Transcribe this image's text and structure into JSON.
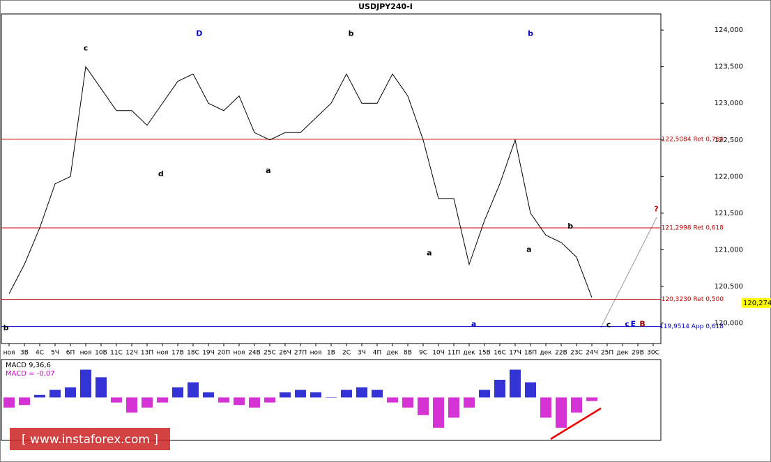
{
  "chart_data": [
    {
      "type": "line",
      "title": "USDJPY240-I",
      "color": "#000000",
      "categories": [
        "ноя",
        "3В",
        "4С",
        "5Ч",
        "6П",
        "ноя",
        "10В",
        "11С",
        "12Ч",
        "13П",
        "ноя",
        "17В",
        "18С",
        "19Ч",
        "20П",
        "ноя",
        "24В",
        "25С",
        "26Ч",
        "27П",
        "ноя",
        "1В",
        "2С",
        "3Ч",
        "4П",
        "дек",
        "8В",
        "9С",
        "10Ч",
        "11П",
        "дек",
        "15В",
        "16С",
        "17Ч",
        "18П",
        "дек",
        "22В",
        "23С",
        "24Ч",
        "25П",
        "дек",
        "29В",
        "30С"
      ],
      "values": [
        120.4,
        120.8,
        121.3,
        121.9,
        122.0,
        123.5,
        123.2,
        122.9,
        122.9,
        122.7,
        123.0,
        123.3,
        123.4,
        123.0,
        122.9,
        123.1,
        122.6,
        122.5,
        122.6,
        122.6,
        122.8,
        123.0,
        123.4,
        123.0,
        123.0,
        123.4,
        123.1,
        122.5,
        121.7,
        121.7,
        120.8,
        121.4,
        121.9,
        122.5,
        121.5,
        121.2,
        121.1,
        120.9,
        120.35,
        null,
        null,
        null,
        null
      ],
      "ylim": [
        119.72,
        124.22
      ],
      "yticks": [
        {
          "value": 120,
          "label": "120,000"
        },
        {
          "value": 120.5,
          "label": "120,500"
        },
        {
          "value": 121,
          "label": "121,000"
        },
        {
          "value": 121.5,
          "label": "121,500"
        },
        {
          "value": 122,
          "label": "122,000"
        },
        {
          "value": 122.5,
          "label": "122,500"
        },
        {
          "value": 123,
          "label": "123,000"
        },
        {
          "value": 123.5,
          "label": "123,500"
        },
        {
          "value": 124,
          "label": "124,000"
        }
      ],
      "levels": [
        {
          "value": 122.5084,
          "label": "122,5084 Ret 0,764",
          "color": "#cc0000"
        },
        {
          "value": 121.2998,
          "label": "121,2998 Ret 0,618",
          "color": "#cc0000"
        },
        {
          "value": 120.323,
          "label": "120,3230 Ret 0,500",
          "color": "#cc0000"
        },
        {
          "value": 119.9514,
          "label": "119,9514 App 0,618",
          "color": "#0000cc"
        }
      ],
      "current": {
        "value": 120.274,
        "label": "120,274"
      },
      "annotations": [
        {
          "text": "D",
          "x": 12.4,
          "y": 123.95,
          "color": "#0000cc"
        },
        {
          "text": "c",
          "x": 5,
          "y": 123.75,
          "color": "#000000"
        },
        {
          "text": "b",
          "x": 22.3,
          "y": 123.95,
          "color": "#000000"
        },
        {
          "text": "b",
          "x": 34,
          "y": 123.95,
          "color": "#0000cc"
        },
        {
          "text": "d",
          "x": 9.9,
          "y": 122.03,
          "color": "#000000"
        },
        {
          "text": "a",
          "x": 16.9,
          "y": 122.08,
          "color": "#000000"
        },
        {
          "text": "a",
          "x": 30.3,
          "y": 119.98,
          "color": "#0000cc"
        },
        {
          "text": "b",
          "x": -0.2,
          "y": 119.93,
          "color": "#000000"
        },
        {
          "text": "a",
          "x": 27.4,
          "y": 120.95,
          "color": "#000000"
        },
        {
          "text": "a",
          "x": 33.9,
          "y": 121.0,
          "color": "#000000"
        },
        {
          "text": "b",
          "x": 36.6,
          "y": 121.32,
          "color": "#000000"
        },
        {
          "text": "?",
          "x": 42.2,
          "y": 121.55,
          "color": "#cc0000"
        },
        {
          "text": "c",
          "x": 39.1,
          "y": 119.97,
          "color": "#000000"
        },
        {
          "text": "c",
          "x": 40.3,
          "y": 119.98,
          "color": "#0000cc"
        },
        {
          "text": "E",
          "x": 40.7,
          "y": 119.98,
          "color": "#0000cc"
        },
        {
          "text": "B",
          "x": 41.3,
          "y": 119.98,
          "color": "#aa0000"
        }
      ]
    },
    {
      "type": "bar",
      "title": "MACD 9,36,6",
      "subtitle": "MACD = -0,07",
      "colors": {
        "positive": "#0000cc",
        "negative": "#cc00cc"
      },
      "values": [
        -0.2,
        -0.15,
        0.05,
        0.15,
        0.2,
        0.55,
        0.4,
        -0.1,
        -0.3,
        -0.2,
        -0.1,
        0.2,
        0.3,
        0.1,
        -0.1,
        -0.15,
        -0.2,
        -0.1,
        0.1,
        0.15,
        0.1,
        0.0,
        0.15,
        0.2,
        0.15,
        -0.1,
        -0.2,
        -0.35,
        -0.6,
        -0.4,
        -0.2,
        0.15,
        0.35,
        0.55,
        0.3,
        -0.4,
        -0.6,
        -0.3,
        -0.07,
        null,
        null,
        null,
        null
      ],
      "ylim": [
        -0.85,
        0.75
      ]
    },
    {
      "type": "watermark",
      "title": "[ www.instaforex.com ]"
    }
  ]
}
